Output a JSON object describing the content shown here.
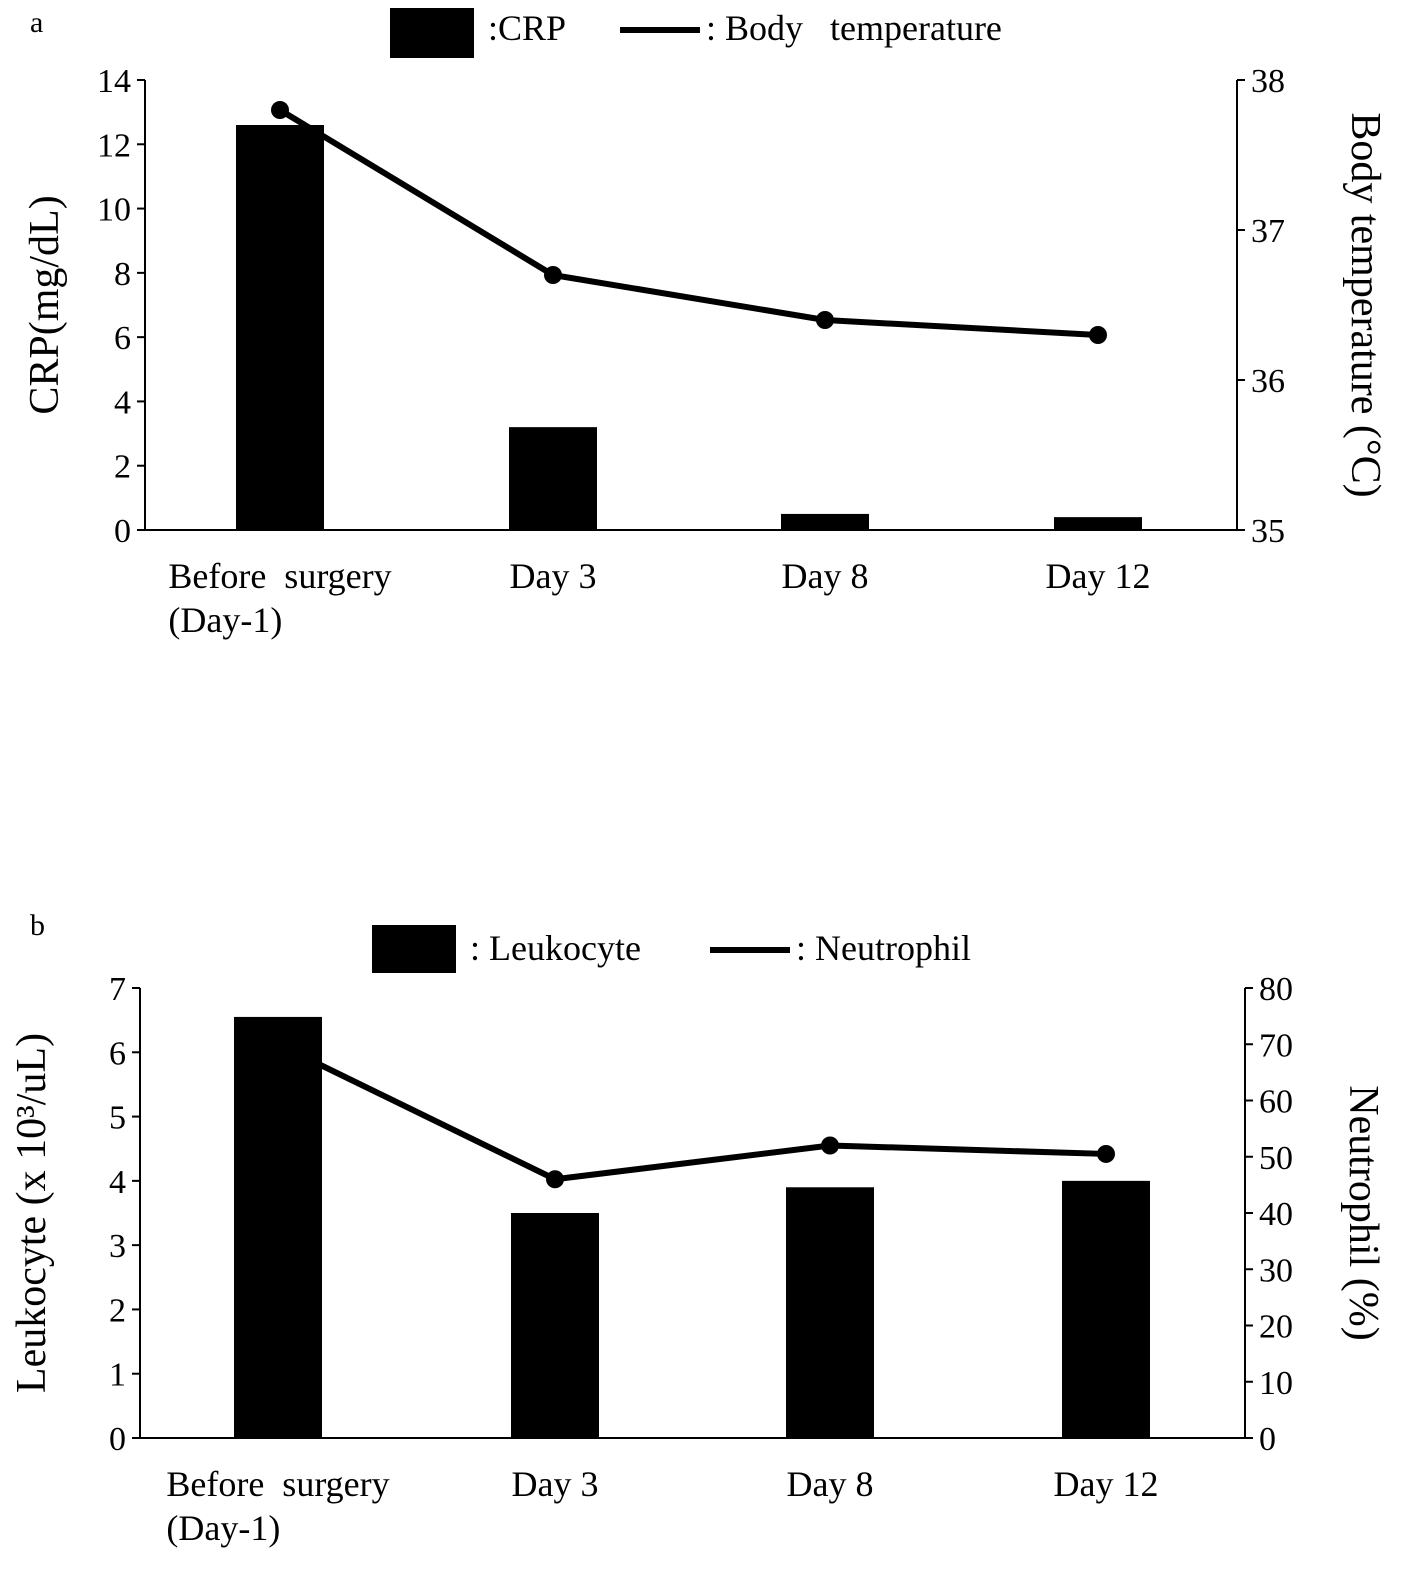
{
  "chart_data": [
    {
      "panel_label": "a",
      "type": "bar+line",
      "categories": [
        "Before  surgery\n(Day-1)",
        "Day 3",
        "Day 8",
        "Day 12"
      ],
      "bar_series": {
        "name": ":CRP",
        "values": [
          12.6,
          3.2,
          0.5,
          0.4
        ]
      },
      "line_series": {
        "name": ": Body   temperature",
        "values": [
          37.8,
          36.7,
          36.4,
          36.3
        ]
      },
      "ylabel_left": "CRP(mg/dL)",
      "ylabel_right": "Body temperature (°C)",
      "ylim_left": [
        0,
        14
      ],
      "ylim_right": [
        35,
        38
      ],
      "yticks_left": [
        0,
        2,
        4,
        6,
        8,
        10,
        12,
        14
      ],
      "yticks_right": [
        35,
        36,
        37,
        38
      ],
      "grid": false,
      "legend_position": "top-center",
      "colors": {
        "bar": "#000000",
        "line": "#000000"
      }
    },
    {
      "panel_label": "b",
      "type": "bar+line",
      "categories": [
        "Before  surgery\n(Day-1)",
        "Day 3",
        "Day 8",
        "Day 12"
      ],
      "bar_series": {
        "name": ": Leukocyte",
        "values": [
          6.55,
          3.5,
          3.9,
          4.0
        ]
      },
      "line_series": {
        "name": ": Neutrophil",
        "values": [
          70,
          46,
          52,
          50.5
        ]
      },
      "ylabel_left": "Leukocyte (x 10³/uL)",
      "ylabel_right": "Neutrophil (%)",
      "ylim_left": [
        0,
        7
      ],
      "ylim_right": [
        0,
        80
      ],
      "yticks_left": [
        0,
        1,
        2,
        3,
        4,
        5,
        6,
        7
      ],
      "yticks_right": [
        0,
        10,
        20,
        30,
        40,
        50,
        60,
        70,
        80
      ],
      "grid": false,
      "legend_position": "top-center",
      "colors": {
        "bar": "#000000",
        "line": "#000000"
      }
    }
  ]
}
